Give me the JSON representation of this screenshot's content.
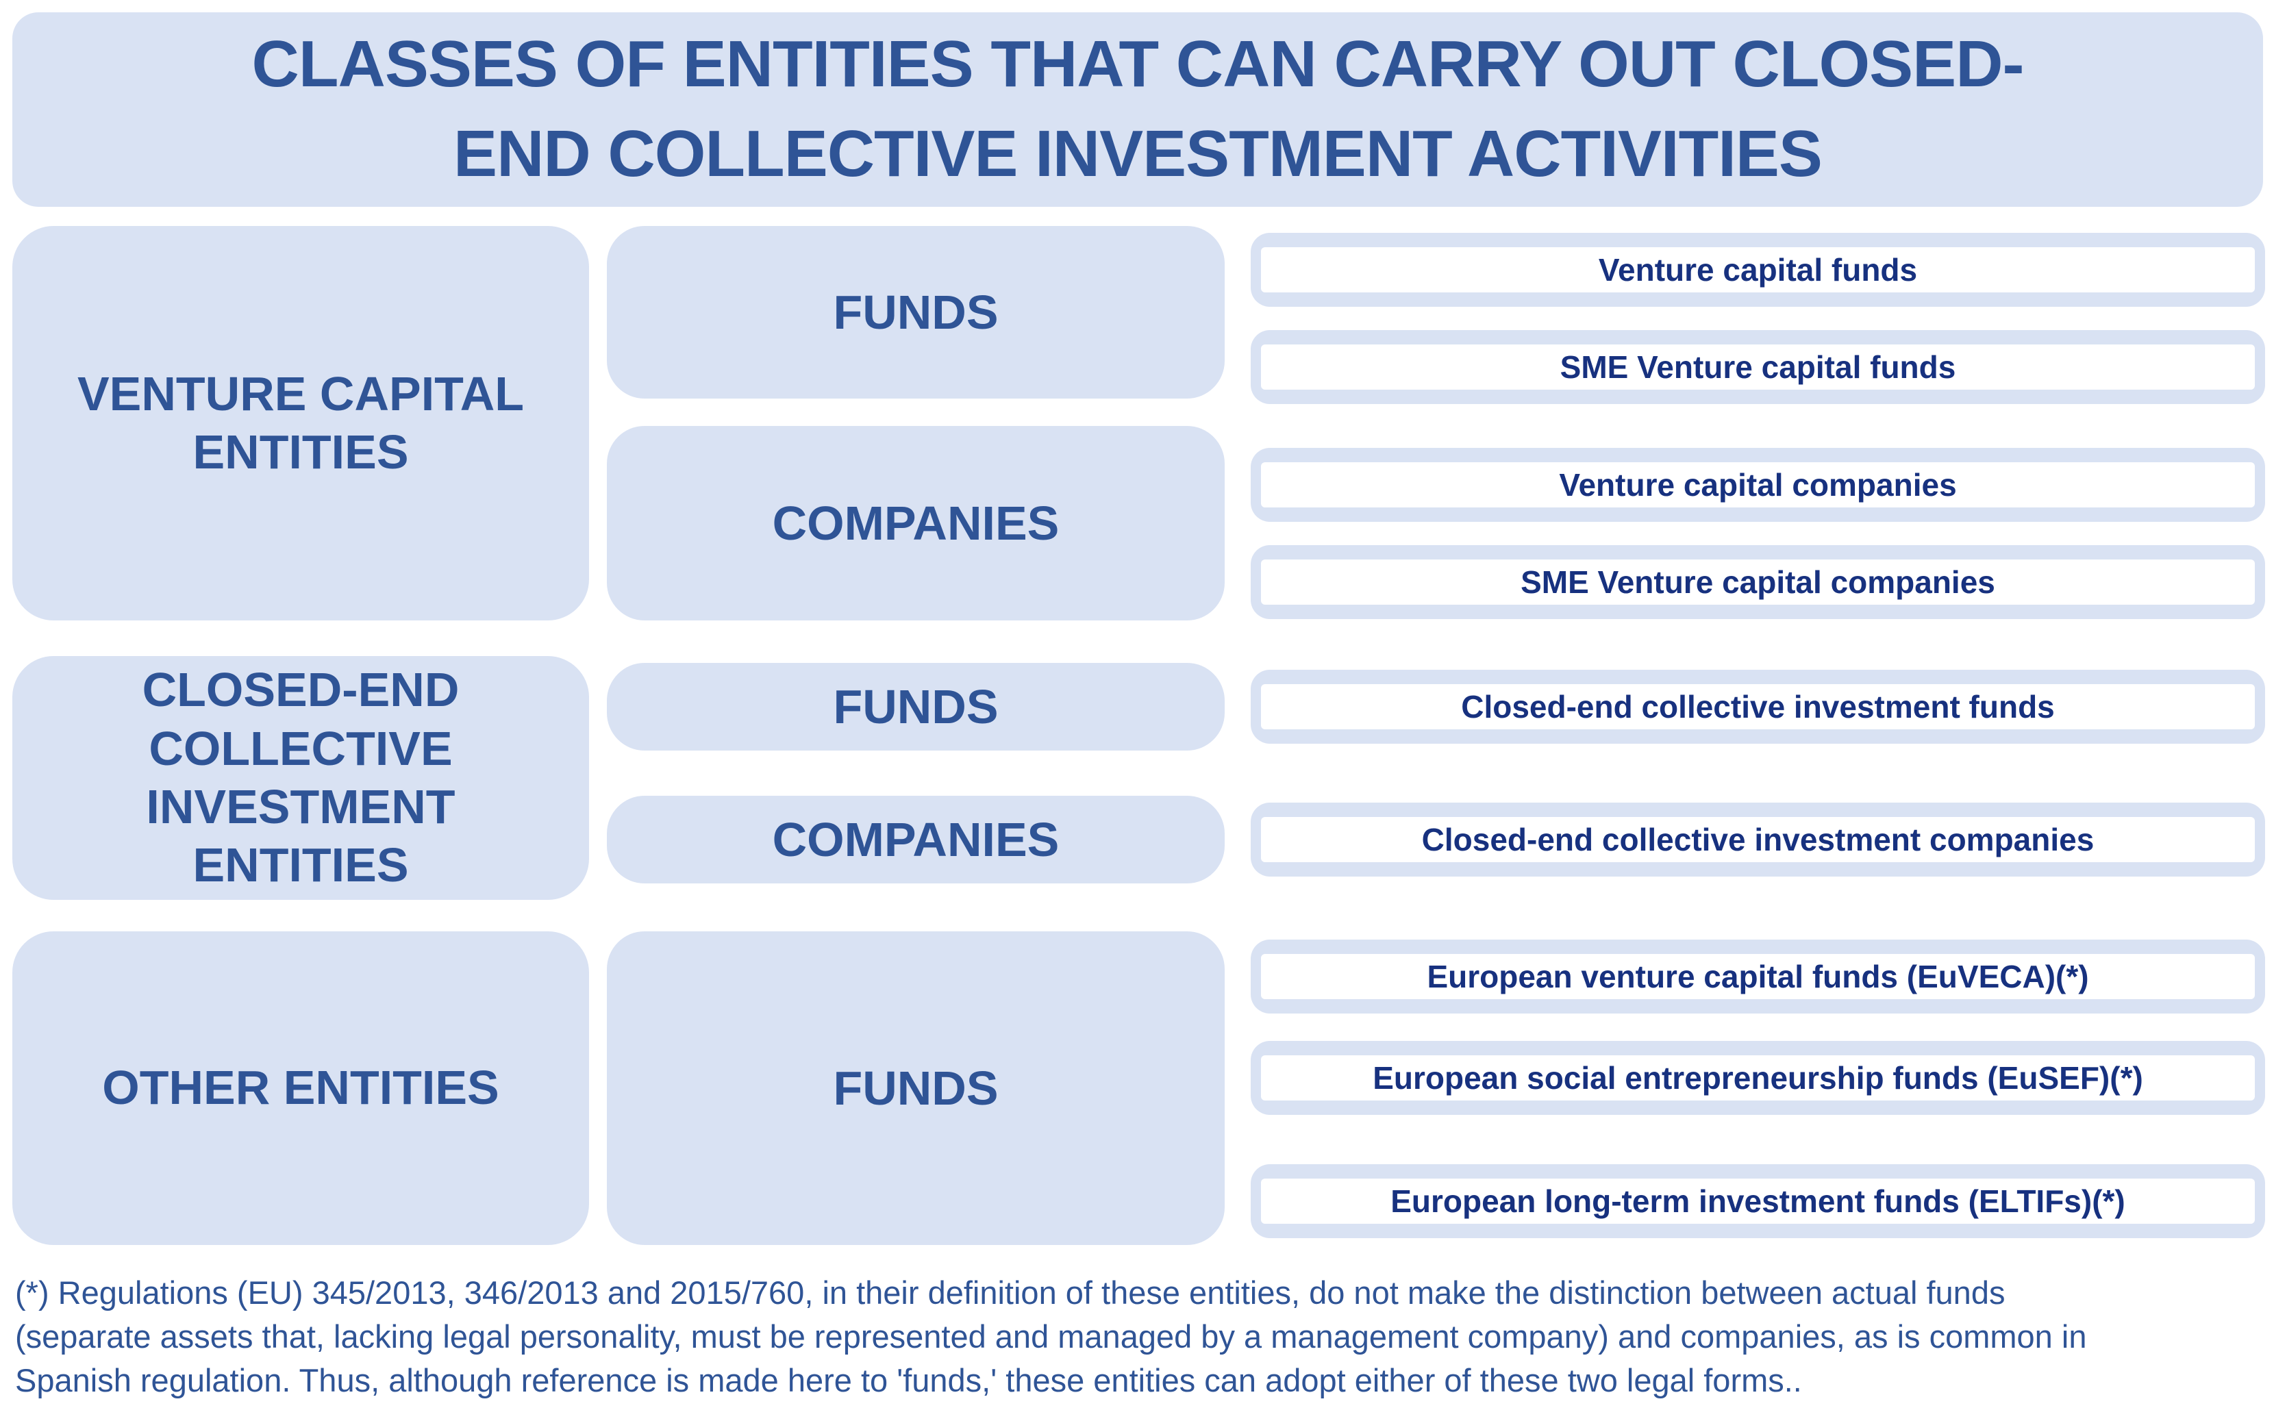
{
  "title": {
    "lines": [
      "CLASSES OF ENTITIES THAT CAN CARRY OUT CLOSED-",
      "END COLLECTIVE INVESTMENT ACTIVITIES"
    ]
  },
  "colors": {
    "box_fill": "#D9E2F3",
    "heading_text": "#2F5496",
    "item_text": "#17317F",
    "item_fill": "#FFFFFF"
  },
  "sections": [
    {
      "category": "VENTURE CAPITAL ENTITIES",
      "groups": [
        {
          "type": "FUNDS",
          "items": [
            "Venture capital funds",
            "SME Venture capital funds"
          ]
        },
        {
          "type": "COMPANIES",
          "items": [
            "Venture capital companies",
            "SME Venture capital companies"
          ]
        }
      ]
    },
    {
      "category": "CLOSED-END COLLECTIVE INVESTMENT ENTITIES",
      "groups": [
        {
          "type": "FUNDS",
          "items": [
            "Closed-end collective investment funds"
          ]
        },
        {
          "type": "COMPANIES",
          "items": [
            "Closed-end collective investment companies"
          ]
        }
      ]
    },
    {
      "category": "OTHER ENTITIES",
      "groups": [
        {
          "type": "FUNDS",
          "items": [
            "European venture capital funds (EuVECA)(*)",
            "European social entrepreneurship funds (EuSEF)(*)",
            "European long-term investment funds (ELTIFs)(*)"
          ]
        }
      ]
    }
  ],
  "footnote": {
    "lines": [
      "(*) Regulations (EU) 345/2013, 346/2013 and 2015/760, in their definition of these entities, do not make the distinction between actual funds",
      "(separate assets that, lacking legal personality, must be represented and managed by a management company) and companies, as is common in",
      "Spanish regulation. Thus, although reference is made here to 'funds,' these entities can adopt either of these two legal forms.."
    ]
  }
}
